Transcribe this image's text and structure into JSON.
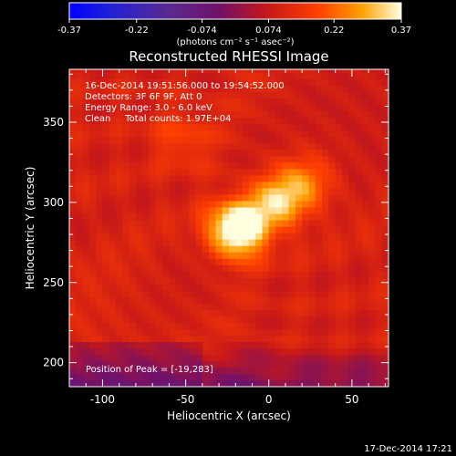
{
  "chart_data": {
    "type": "heatmap",
    "title": "Reconstructed RHESSI Image",
    "xlabel": "Heliocentric X (arcsec)",
    "ylabel": "Heliocentric Y (arcsec)",
    "xlim": [
      -120,
      72
    ],
    "ylim": [
      185,
      383
    ],
    "x_ticks": [
      -100,
      -50,
      0,
      50
    ],
    "y_ticks": [
      200,
      250,
      300,
      350
    ],
    "colorbar": {
      "min": -0.37,
      "max": 0.37,
      "ticks": [
        "-0.37",
        "-0.22",
        "-0.074",
        "0.074",
        "0.22",
        "0.37"
      ],
      "units_line": "(photons cm⁻² s⁻¹ asec⁻²)"
    },
    "annotations": [
      "16-Dec-2014 19:51:56.000 to 19:54:52.000",
      "Detectors: 3F 6F 9F, Att 0",
      "Energy Range: 3.0 - 6.0 keV",
      "Clean     Total counts: 1.97E+04"
    ],
    "peak_label": "Position of Peak = [-19,283]",
    "peak": {
      "x": -19,
      "y": 283,
      "value": 0.37
    },
    "sources": [
      {
        "x": -19,
        "y": 283,
        "amplitude": 0.37
      },
      {
        "x": 5,
        "y": 300,
        "amplitude": 0.2
      },
      {
        "x": 22,
        "y": 312,
        "amplitude": 0.14
      },
      {
        "x": -52,
        "y": 340,
        "amplitude": 0.08
      }
    ],
    "timestamp": "17-Dec-2014 17:21"
  }
}
